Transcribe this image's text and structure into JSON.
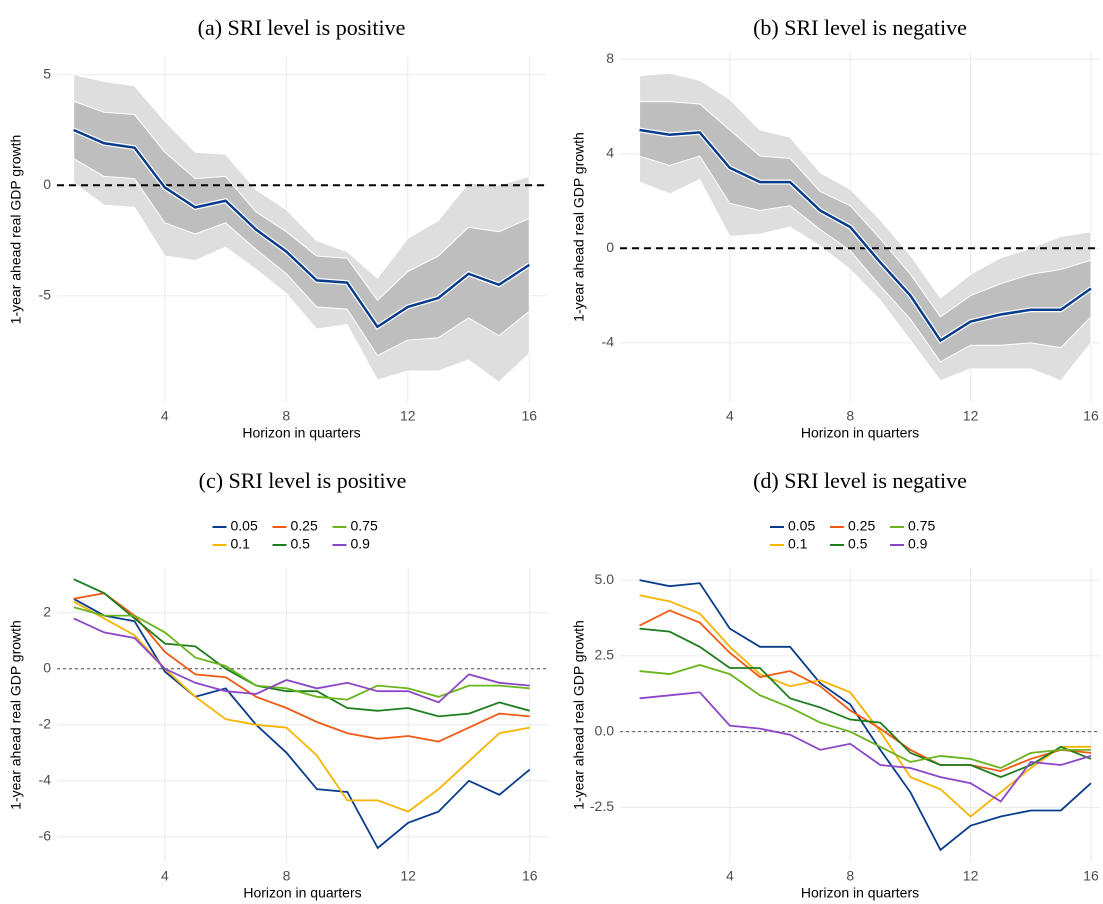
{
  "chart_data": [
    {
      "type": "band",
      "title": "(a) SRI level is positive",
      "x_label": "Horizon in quarters",
      "y_label": "1-year ahead real GDP growth",
      "x": [
        1,
        2,
        3,
        4,
        5,
        6,
        7,
        8,
        9,
        10,
        11,
        12,
        13,
        14,
        15,
        16
      ],
      "xlim": [
        0.45,
        16.55
      ],
      "xticks": [
        4,
        8,
        12,
        16
      ],
      "ylim": [
        -9.8,
        5.8
      ],
      "yticks": [
        -5,
        0,
        5
      ],
      "grid": true,
      "reference_line": 0,
      "bands": [
        {
          "color": "#dedede",
          "lower": [
            0.1,
            -0.9,
            -1.0,
            -3.2,
            -3.4,
            -2.8,
            -3.8,
            -4.9,
            -6.5,
            -6.3,
            -8.8,
            -8.4,
            -8.4,
            -7.9,
            -8.9,
            -7.6
          ],
          "upper": [
            5.0,
            4.7,
            4.5,
            2.9,
            1.5,
            1.4,
            -0.2,
            -1.1,
            -2.5,
            -3.0,
            -4.2,
            -2.4,
            -1.6,
            0.1,
            0.0,
            0.4
          ]
        },
        {
          "color": "#bebebe",
          "lower": [
            1.2,
            0.4,
            0.3,
            -1.7,
            -2.2,
            -1.7,
            -2.9,
            -4.0,
            -5.5,
            -5.6,
            -7.7,
            -7.0,
            -6.9,
            -6.0,
            -6.8,
            -5.7
          ],
          "upper": [
            3.8,
            3.3,
            3.2,
            1.5,
            0.3,
            0.4,
            -1.2,
            -2.1,
            -3.2,
            -3.3,
            -5.2,
            -3.9,
            -3.2,
            -1.9,
            -2.1,
            -1.5
          ]
        }
      ],
      "series": [
        {
          "color": "#0a3c8c",
          "values": [
            2.5,
            1.9,
            1.7,
            -0.1,
            -1.0,
            -0.7,
            -2.0,
            -3.0,
            -4.3,
            -4.4,
            -6.4,
            -5.5,
            -5.1,
            -4.0,
            -4.5,
            -3.6
          ]
        }
      ]
    },
    {
      "type": "band",
      "title": "(b) SRI level is negative",
      "x_label": "Horizon in quarters",
      "y_label": "1-year ahead real GDP growth",
      "x": [
        1,
        2,
        3,
        4,
        5,
        6,
        7,
        8,
        9,
        10,
        11,
        12,
        13,
        14,
        15,
        16
      ],
      "xlim": [
        0.35,
        16.3
      ],
      "xticks": [
        4,
        8,
        12,
        16
      ],
      "ylim": [
        -6.5,
        8.3
      ],
      "yticks": [
        -4,
        0,
        4,
        8
      ],
      "grid": true,
      "reference_line": 0,
      "bands": [
        {
          "color": "#dedede",
          "lower": [
            2.8,
            2.3,
            2.9,
            0.5,
            0.6,
            0.9,
            0.1,
            -0.9,
            -2.2,
            -3.9,
            -5.6,
            -5.1,
            -5.1,
            -5.1,
            -5.6,
            -4.0
          ],
          "upper": [
            7.3,
            7.4,
            7.1,
            6.3,
            5.0,
            4.7,
            3.2,
            2.5,
            1.2,
            -0.3,
            -2.1,
            -1.1,
            -0.4,
            0.0,
            0.5,
            0.7
          ]
        },
        {
          "color": "#bebebe",
          "lower": [
            3.9,
            3.5,
            3.9,
            1.9,
            1.6,
            1.8,
            0.8,
            -0.1,
            -1.6,
            -3.0,
            -4.8,
            -4.1,
            -4.1,
            -4.0,
            -4.2,
            -2.9
          ],
          "upper": [
            6.2,
            6.2,
            6.1,
            5.0,
            3.9,
            3.8,
            2.4,
            1.8,
            0.4,
            -1.1,
            -2.9,
            -2.0,
            -1.5,
            -1.1,
            -0.9,
            -0.5
          ]
        }
      ],
      "series": [
        {
          "color": "#0a3c8c",
          "values": [
            5.0,
            4.8,
            4.9,
            3.4,
            2.8,
            2.8,
            1.6,
            0.9,
            -0.6,
            -2.0,
            -3.9,
            -3.1,
            -2.8,
            -2.6,
            -2.6,
            -1.7
          ]
        }
      ]
    },
    {
      "type": "line",
      "title": "(c) SRI level is positive",
      "x_label": "Horizon in quarters",
      "y_label": "1-year ahead real GDP growth",
      "x": [
        1,
        2,
        3,
        4,
        5,
        6,
        7,
        8,
        9,
        10,
        11,
        12,
        13,
        14,
        15,
        16
      ],
      "xlim": [
        0.45,
        16.6
      ],
      "xticks": [
        4,
        8,
        12,
        16
      ],
      "ylim": [
        -6.9,
        3.6
      ],
      "yticks": [
        -6,
        -4,
        -2,
        0,
        2
      ],
      "grid": true,
      "reference_line": 0,
      "legend": "top",
      "series": [
        {
          "name": "0.05",
          "color": "#0a3c8c",
          "values": [
            2.5,
            1.9,
            1.7,
            -0.1,
            -1.0,
            -0.7,
            -2.0,
            -3.0,
            -4.3,
            -4.4,
            -6.4,
            -5.5,
            -5.1,
            -4.0,
            -4.5,
            -3.6
          ]
        },
        {
          "name": "0.1",
          "color": "#f5b400",
          "values": [
            2.4,
            1.8,
            1.2,
            0.0,
            -1.0,
            -1.8,
            -2.0,
            -2.1,
            -3.1,
            -4.7,
            -4.7,
            -5.1,
            -4.3,
            -3.3,
            -2.3,
            -2.1
          ]
        },
        {
          "name": "0.25",
          "color": "#f05a14",
          "values": [
            2.5,
            2.7,
            1.9,
            0.6,
            -0.2,
            -0.3,
            -1.0,
            -1.4,
            -1.9,
            -2.3,
            -2.5,
            -2.4,
            -2.6,
            -2.1,
            -1.6,
            -1.7
          ]
        },
        {
          "name": "0.5",
          "color": "#1e7d1e",
          "values": [
            3.2,
            2.7,
            1.8,
            0.9,
            0.8,
            0.0,
            -0.6,
            -0.8,
            -0.8,
            -1.4,
            -1.5,
            -1.4,
            -1.7,
            -1.6,
            -1.2,
            -1.5
          ]
        },
        {
          "name": "0.75",
          "color": "#6ab41e",
          "values": [
            2.2,
            1.9,
            1.9,
            1.3,
            0.4,
            0.1,
            -0.6,
            -0.7,
            -1.0,
            -1.1,
            -0.6,
            -0.7,
            -1.0,
            -0.6,
            -0.6,
            -0.7
          ]
        },
        {
          "name": "0.9",
          "color": "#8c46c8",
          "values": [
            1.8,
            1.3,
            1.1,
            0.0,
            -0.5,
            -0.8,
            -0.9,
            -0.4,
            -0.7,
            -0.5,
            -0.8,
            -0.8,
            -1.2,
            -0.2,
            -0.5,
            -0.6
          ]
        }
      ]
    },
    {
      "type": "line",
      "title": "(d) SRI level is negative",
      "x_label": "Horizon in quarters",
      "y_label": "1-year ahead real GDP growth",
      "x": [
        1,
        2,
        3,
        4,
        5,
        6,
        7,
        8,
        9,
        10,
        11,
        12,
        13,
        14,
        15,
        16
      ],
      "xlim": [
        0.35,
        16.3
      ],
      "xticks": [
        4,
        8,
        12,
        16
      ],
      "ylim": [
        -4.3,
        5.4
      ],
      "yticks": [
        -2.5,
        {
          "value": 0,
          "label": "0.0"
        },
        2.5,
        {
          "value": 5,
          "label": "5.0"
        }
      ],
      "grid": true,
      "reference_line": 0,
      "legend": "top",
      "series": [
        {
          "name": "0.05",
          "color": "#0a3c8c",
          "values": [
            5.0,
            4.8,
            4.9,
            3.4,
            2.8,
            2.8,
            1.6,
            0.9,
            -0.6,
            -2.0,
            -3.9,
            -3.1,
            -2.8,
            -2.6,
            -2.6,
            -1.7
          ]
        },
        {
          "name": "0.1",
          "color": "#f5b400",
          "values": [
            4.5,
            4.3,
            3.9,
            2.8,
            1.9,
            1.5,
            1.7,
            1.3,
            0.0,
            -1.5,
            -1.9,
            -2.8,
            -2.0,
            -1.2,
            -0.5,
            -0.5
          ]
        },
        {
          "name": "0.25",
          "color": "#f05a14",
          "values": [
            3.5,
            4.0,
            3.6,
            2.6,
            1.8,
            2.0,
            1.5,
            0.7,
            0.1,
            -0.6,
            -1.1,
            -1.1,
            -1.3,
            -0.9,
            -0.6,
            -0.7
          ]
        },
        {
          "name": "0.5",
          "color": "#1e7d1e",
          "values": [
            3.4,
            3.3,
            2.8,
            2.1,
            2.1,
            1.1,
            0.8,
            0.4,
            0.3,
            -0.7,
            -1.1,
            -1.1,
            -1.5,
            -1.1,
            -0.5,
            -0.9
          ]
        },
        {
          "name": "0.75",
          "color": "#6ab41e",
          "values": [
            2.0,
            1.9,
            2.2,
            1.9,
            1.2,
            0.8,
            0.3,
            0.0,
            -0.5,
            -1.0,
            -0.8,
            -0.9,
            -1.2,
            -0.7,
            -0.6,
            -0.6
          ]
        },
        {
          "name": "0.9",
          "color": "#8c46c8",
          "values": [
            1.1,
            1.2,
            1.3,
            0.2,
            0.1,
            -0.1,
            -0.6,
            -0.4,
            -1.1,
            -1.2,
            -1.5,
            -1.7,
            -2.3,
            -1.0,
            -1.1,
            -0.8
          ]
        }
      ]
    }
  ]
}
